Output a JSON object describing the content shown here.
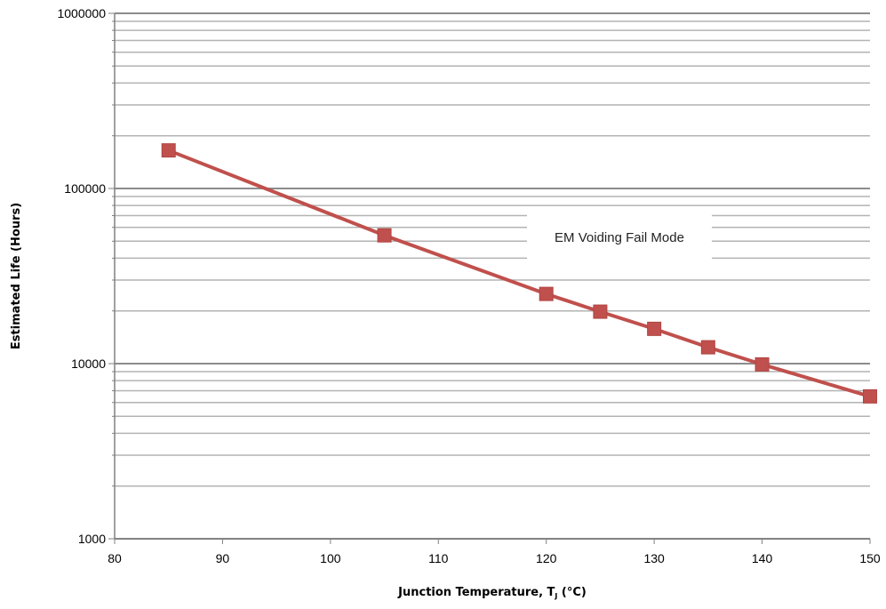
{
  "chart_data": {
    "type": "line",
    "xlabel": "Junction Temperature, T",
    "xlabel_sub": "J",
    "xlabel_suffix": " (°C)",
    "ylabel": "Estimated Life (Hours)",
    "xlim": [
      80,
      150
    ],
    "ylim": [
      1000,
      1000000
    ],
    "yscale": "log",
    "x_ticks": [
      80,
      90,
      100,
      110,
      120,
      130,
      140,
      150
    ],
    "y_ticks": [
      1000,
      10000,
      100000,
      1000000
    ],
    "grid": true,
    "annotation": "EM Voiding Fail Mode",
    "series": [
      {
        "x": [
          85,
          105,
          120,
          125,
          130,
          135,
          140,
          150
        ],
        "y": [
          165000,
          54000,
          25000,
          19800,
          15800,
          12400,
          9900,
          6500
        ]
      }
    ],
    "colors": {
      "series": "#c0504d",
      "grid_major": "#8c8c8c",
      "grid_minor": "#b3b3b3",
      "axis": "#808080"
    }
  }
}
